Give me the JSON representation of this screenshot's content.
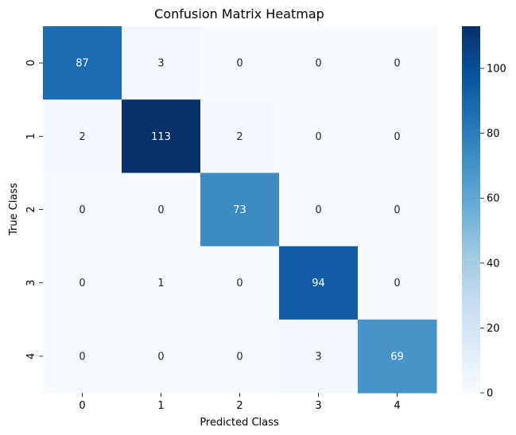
{
  "chart_data": {
    "type": "heatmap",
    "title": "Confusion Matrix Heatmap",
    "xlabel": "Predicted Class",
    "ylabel": "True Class",
    "x_categories": [
      "0",
      "1",
      "2",
      "3",
      "4"
    ],
    "y_categories": [
      "0",
      "1",
      "2",
      "3",
      "4"
    ],
    "values": [
      [
        87,
        3,
        0,
        0,
        0
      ],
      [
        2,
        113,
        2,
        0,
        0
      ],
      [
        0,
        0,
        73,
        0,
        0
      ],
      [
        0,
        1,
        0,
        94,
        0
      ],
      [
        0,
        0,
        0,
        3,
        69
      ]
    ],
    "colormap": "Blues",
    "colorbar": {
      "range": [
        0,
        113
      ],
      "ticks": [
        0,
        20,
        40,
        60,
        80,
        100
      ]
    },
    "annotations": true
  }
}
